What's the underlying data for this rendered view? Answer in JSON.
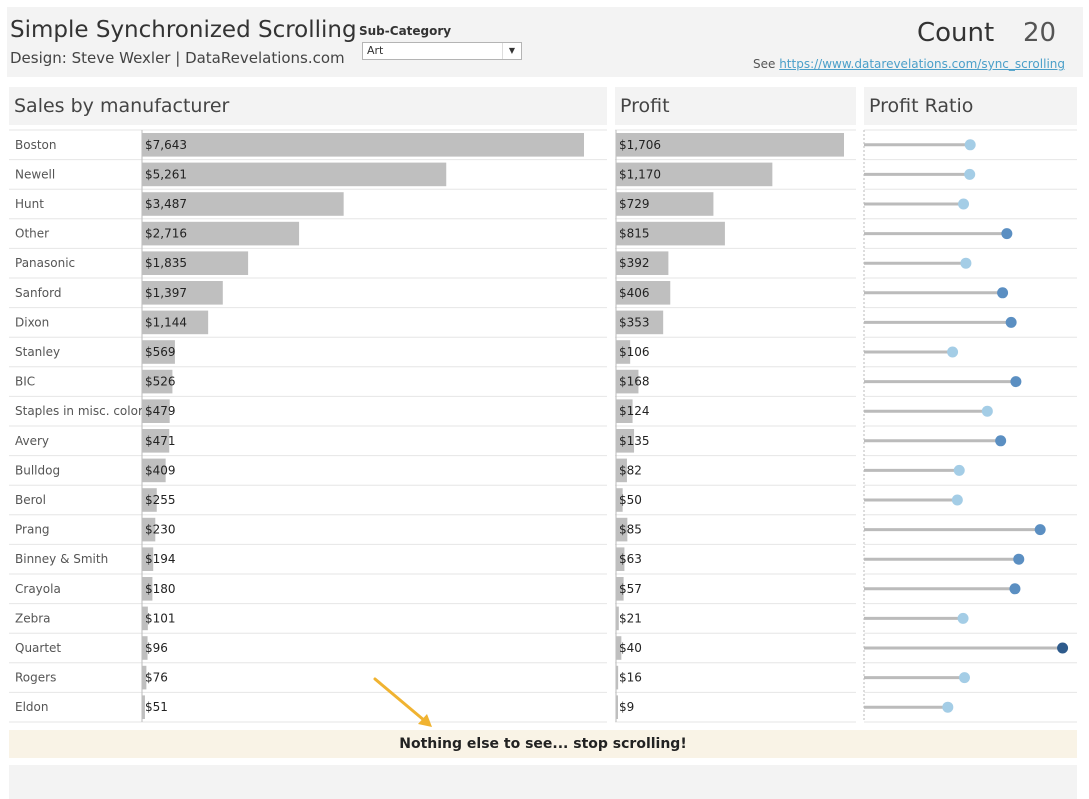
{
  "header": {
    "title": "Simple Synchronized Scrolling",
    "subtitle": "Design: Steve Wexler | DataRevelations.com",
    "filter_label": "Sub-Category",
    "filter_value": "Art",
    "count_label": "Count",
    "count_value": "20",
    "see_prefix": "See ",
    "see_link": "https://www.datarevelations.com/sync_scrolling"
  },
  "panels": {
    "sales": "Sales by manufacturer",
    "profit": "Profit",
    "ratio": "Profit Ratio"
  },
  "footer": {
    "message": "Nothing else to see... stop scrolling!"
  },
  "colors": {
    "bar": "#bfbfbf",
    "ratio_light": "#a4cde6",
    "ratio_mid": "#5b8fc2",
    "ratio_dark": "#2e5b8c",
    "arrow": "#f0b331"
  },
  "chart_data": {
    "type": "bar",
    "categories": [
      "Boston",
      "Newell",
      "Hunt",
      "Other",
      "Panasonic",
      "Sanford",
      "Dixon",
      "Stanley",
      "BIC",
      "Staples in misc. colors",
      "Avery",
      "Bulldog",
      "Berol",
      "Prang",
      "Binney & Smith",
      "Crayola",
      "Zebra",
      "Quartet",
      "Rogers",
      "Eldon"
    ],
    "series": [
      {
        "name": "Sales by manufacturer",
        "values": [
          7643,
          5261,
          3487,
          2716,
          1835,
          1397,
          1144,
          569,
          526,
          479,
          471,
          409,
          255,
          230,
          194,
          180,
          101,
          96,
          76,
          51
        ],
        "labels": [
          "$7,643",
          "$5,261",
          "$3,487",
          "$2,716",
          "$1,835",
          "$1,397",
          "$1,144",
          "$569",
          "$526",
          "$479",
          "$471",
          "$409",
          "$255",
          "$230",
          "$194",
          "$180",
          "$101",
          "$96",
          "$76",
          "$51"
        ]
      },
      {
        "name": "Profit",
        "values": [
          1706,
          1170,
          729,
          815,
          392,
          406,
          353,
          106,
          168,
          124,
          135,
          82,
          50,
          85,
          63,
          57,
          21,
          40,
          16,
          9
        ],
        "labels": [
          "$1,706",
          "$1,170",
          "$729",
          "$815",
          "$392",
          "$406",
          "$353",
          "$106",
          "$168",
          "$124",
          "$135",
          "$82",
          "$50",
          "$85",
          "$63",
          "$57",
          "$21",
          "$40",
          "$16",
          "$9"
        ]
      },
      {
        "name": "Profit Ratio",
        "values": [
          0.223,
          0.222,
          0.209,
          0.3,
          0.214,
          0.291,
          0.309,
          0.186,
          0.319,
          0.259,
          0.287,
          0.2,
          0.196,
          0.37,
          0.325,
          0.317,
          0.208,
          0.417,
          0.211,
          0.176
        ]
      }
    ],
    "xlim_sales": [
      0,
      7643
    ],
    "xlim_profit": [
      0,
      1706
    ],
    "xlim_ratio": [
      0,
      0.42
    ]
  }
}
